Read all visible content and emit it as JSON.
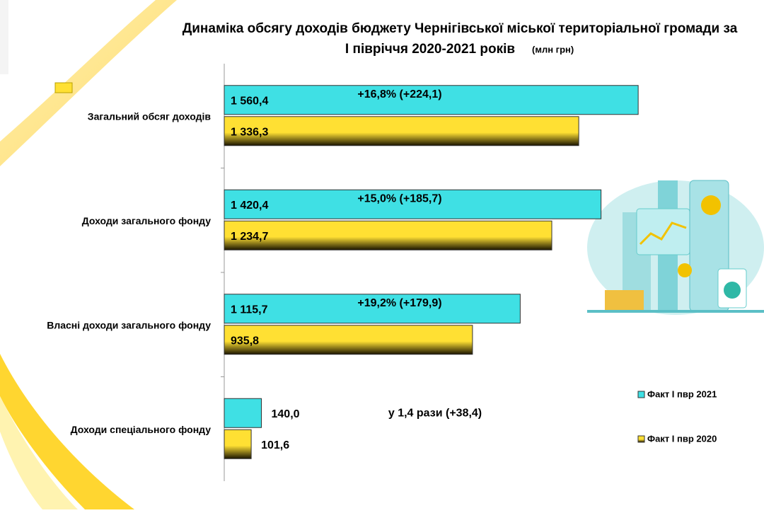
{
  "chart_data": {
    "type": "bar",
    "orientation": "horizontal",
    "title": "Динаміка обсягу доходів бюджету Чернігівської міської територіальної громади за",
    "subtitle": "І півріччя 2020-2021 років",
    "unit": "(млн грн)",
    "categories": [
      "Загальний обсяг доходів",
      "Доходи загального фонду",
      "Власні доходи загального фонду",
      "Доходи спеціального фонду"
    ],
    "series": [
      {
        "name": "Факт І пвр 2021",
        "color": "#3fe0e4",
        "values": [
          1560.4,
          1420.4,
          1115.7,
          140.0
        ],
        "value_labels": [
          "1 560,4",
          "1 420,4",
          "1 115,7",
          "140,0"
        ]
      },
      {
        "name": "Факт І пвр 2020",
        "color": "#ffe033",
        "values": [
          1336.3,
          1234.7,
          935.8,
          101.6
        ],
        "value_labels": [
          "1 336,3",
          "1 234,7",
          "935,8",
          "101,6"
        ]
      }
    ],
    "annotations": [
      "+16,8% (+224,1)",
      "+15,0% (+185,7)",
      "+19,2% (+179,9)",
      "у 1,4 рази (+38,4)"
    ],
    "xlim": [
      0,
      1600
    ],
    "legend": "lower right"
  }
}
